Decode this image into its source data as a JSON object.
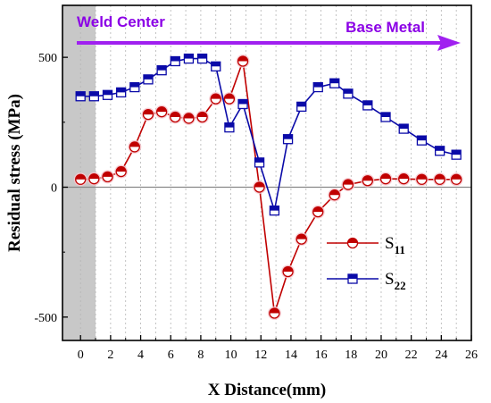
{
  "chart_data": {
    "type": "line",
    "xlabel": "X Distance(mm)",
    "ylabel": "Residual stress (MPa)",
    "xlim": [
      -1.2,
      26
    ],
    "ylim": [
      -590,
      700
    ],
    "xticks": [
      0,
      2,
      4,
      6,
      8,
      10,
      12,
      14,
      16,
      18,
      20,
      22,
      24,
      26
    ],
    "yticks": [
      -500,
      0,
      500
    ],
    "grid": "vertical dotted",
    "shaded_region": [
      -1.2,
      1.0
    ],
    "legend": {
      "placement": "bottom-right"
    },
    "annotations": [
      {
        "text": "Weld Center",
        "position": "top-left"
      },
      {
        "text": "Base Metal",
        "position": "top-right"
      }
    ],
    "arrow_color": "#A020F0",
    "series": [
      {
        "name": "S",
        "sub": "11",
        "color": "#C00000",
        "marker": "half-filled-circle",
        "x": [
          0,
          0.9,
          1.8,
          2.7,
          3.6,
          4.5,
          5.4,
          6.3,
          7.2,
          8.1,
          9.0,
          9.9,
          10.8,
          11.9,
          12.9,
          13.8,
          14.7,
          15.8,
          16.9,
          17.8,
          19.1,
          20.3,
          21.5,
          22.7,
          23.9,
          25.0
        ],
        "y": [
          30,
          32,
          40,
          60,
          155,
          280,
          290,
          270,
          265,
          270,
          340,
          340,
          485,
          0,
          -485,
          -325,
          -200,
          -95,
          -30,
          10,
          25,
          32,
          32,
          30,
          30,
          30
        ]
      },
      {
        "name": "S",
        "sub": "22",
        "color": "#0A0AA8",
        "marker": "half-filled-square",
        "x": [
          0,
          0.9,
          1.8,
          2.7,
          3.6,
          4.5,
          5.4,
          6.3,
          7.2,
          8.1,
          9.0,
          9.9,
          10.8,
          11.9,
          12.9,
          13.8,
          14.7,
          15.8,
          16.9,
          17.8,
          19.1,
          20.3,
          21.5,
          22.7,
          23.9,
          25.0
        ],
        "y": [
          350,
          350,
          355,
          365,
          385,
          415,
          450,
          485,
          495,
          495,
          465,
          230,
          320,
          95,
          -90,
          185,
          310,
          385,
          400,
          360,
          315,
          270,
          225,
          180,
          140,
          125
        ]
      }
    ]
  }
}
